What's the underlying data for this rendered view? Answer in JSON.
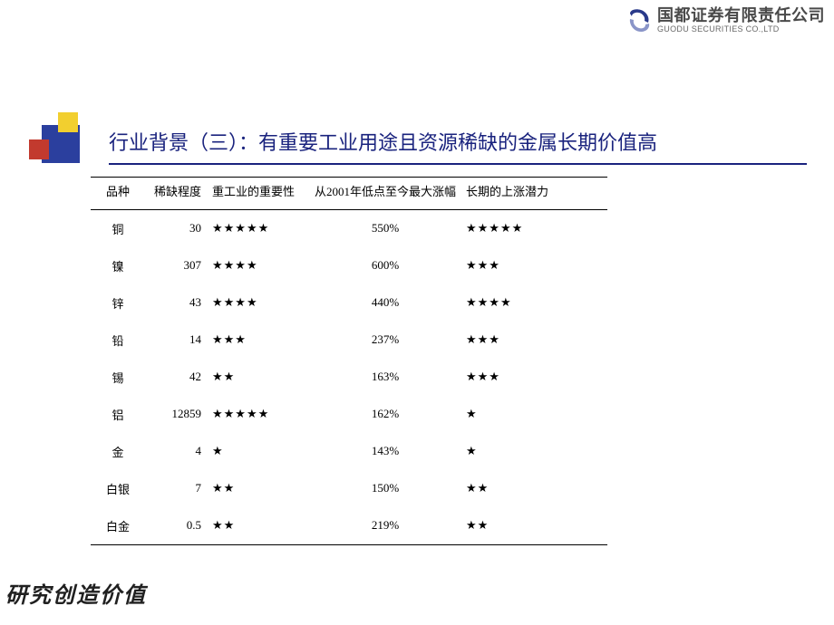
{
  "logo": {
    "company_cn": "国都证券有限责任公司",
    "company_en": "GUODU SECURITIES CO.,LTD",
    "mark_color_outer": "#2a3a8a",
    "mark_color_inner": "#8a95c8"
  },
  "decor": {
    "blue": "#2b3f9e",
    "yellow": "#f2cf2f",
    "red": "#c23a2e"
  },
  "title": "行业背景（三）：有重要工业用途且资源稀缺的金属长期价值高",
  "title_color": "#1a237e",
  "table": {
    "columns": [
      {
        "key": "name",
        "label": "品种"
      },
      {
        "key": "scarcity",
        "label": "稀缺程度"
      },
      {
        "key": "importance",
        "label": "重工业的重要性"
      },
      {
        "key": "rise",
        "label": "从2001年低点至今最大涨幅"
      },
      {
        "key": "potential",
        "label": "长期的上涨潜力"
      }
    ],
    "rows": [
      {
        "name": "铜",
        "scarcity": "30",
        "importance": 5,
        "rise": "550%",
        "potential": 5
      },
      {
        "name": "镍",
        "scarcity": "307",
        "importance": 4,
        "rise": "600%",
        "potential": 3
      },
      {
        "name": "锌",
        "scarcity": "43",
        "importance": 4,
        "rise": "440%",
        "potential": 4
      },
      {
        "name": "铅",
        "scarcity": "14",
        "importance": 3,
        "rise": "237%",
        "potential": 3
      },
      {
        "name": "锡",
        "scarcity": "42",
        "importance": 2,
        "rise": "163%",
        "potential": 3
      },
      {
        "name": "铝",
        "scarcity": "12859",
        "importance": 5,
        "rise": "162%",
        "potential": 1
      },
      {
        "name": "金",
        "scarcity": "4",
        "importance": 1,
        "rise": "143%",
        "potential": 1
      },
      {
        "name": "白银",
        "scarcity": "7",
        "importance": 2,
        "rise": "150%",
        "potential": 2
      },
      {
        "name": "白金",
        "scarcity": "0.5",
        "importance": 2,
        "rise": "219%",
        "potential": 2
      }
    ],
    "star_glyph": "★",
    "header_fontsize": 13,
    "cell_fontsize": 13,
    "border_color": "#000000"
  },
  "footer": "研究创造价值"
}
